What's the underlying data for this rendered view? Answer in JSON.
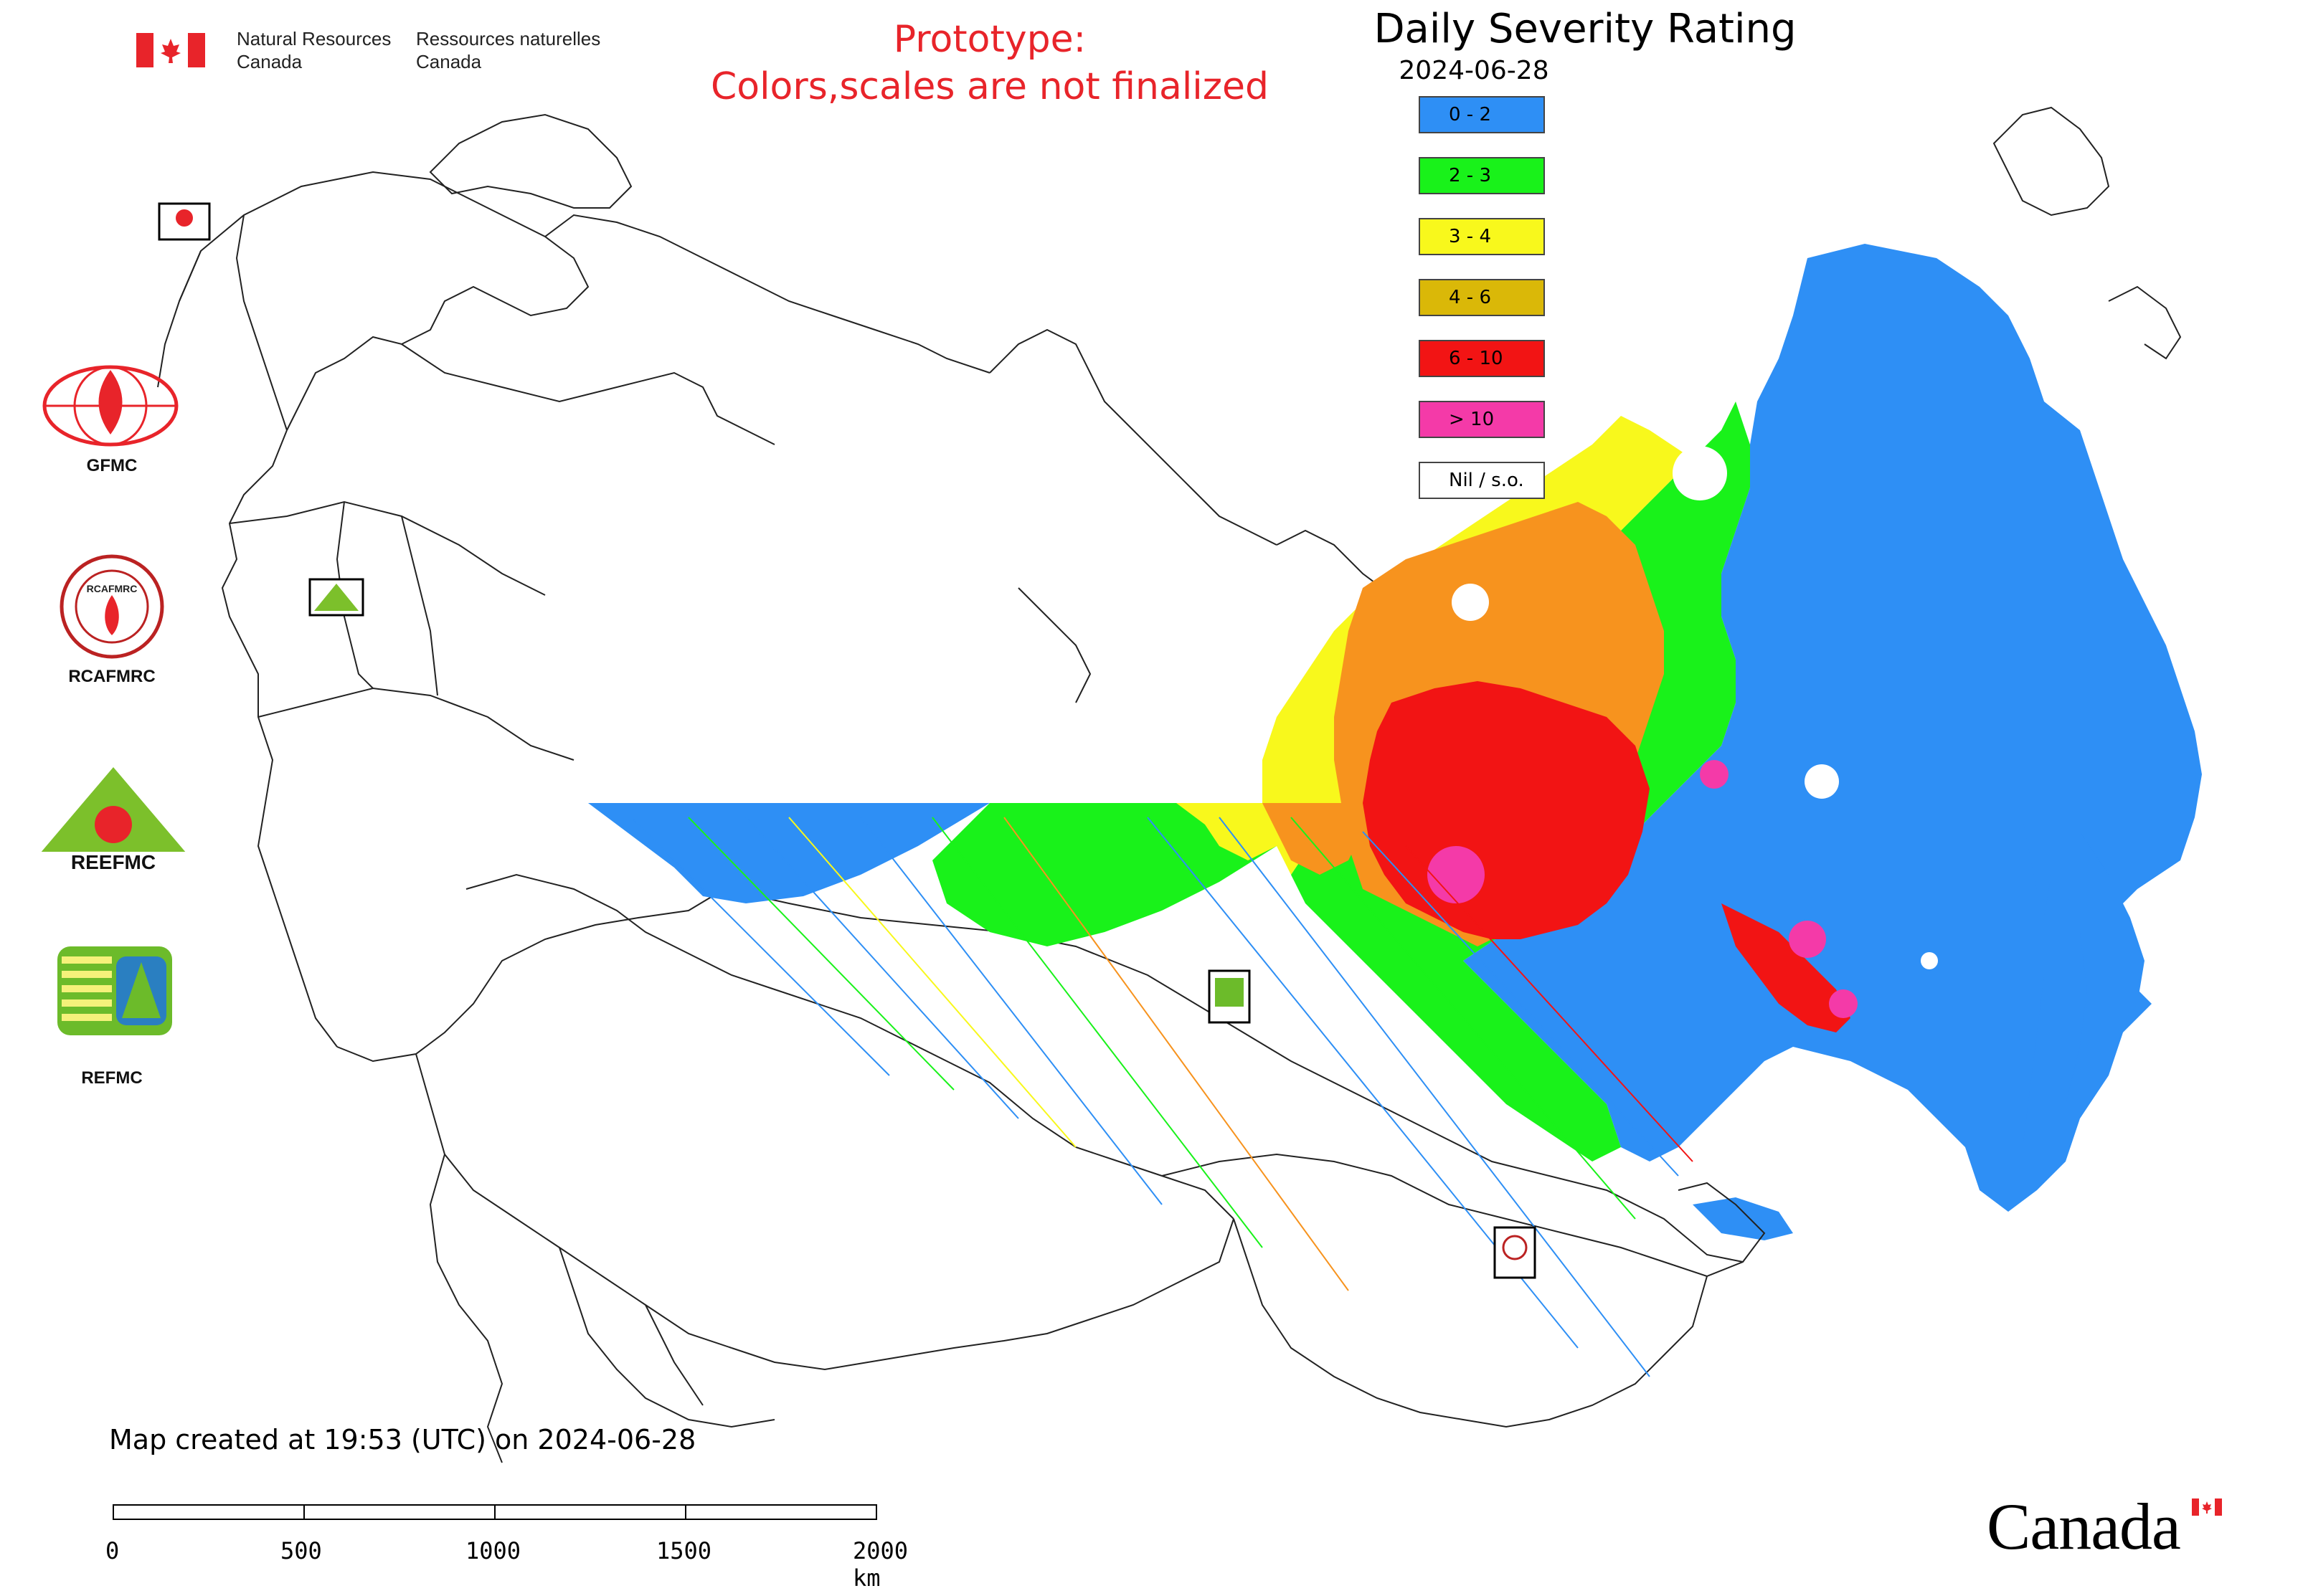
{
  "header": {
    "dept_en_line1": "Natural Resources",
    "dept_en_line2": "Canada",
    "dept_fr_line1": "Ressources naturelles",
    "dept_fr_line2": "Canada"
  },
  "notice": {
    "line1": "Prototype:",
    "line2": "Colors,scales are not finalized",
    "color": "#e8242a"
  },
  "map": {
    "title": "Daily Severity Rating",
    "date": "2024-06-28",
    "legend": [
      {
        "label": "0 - 2",
        "color": "#2e8ff5"
      },
      {
        "label": "2 - 3",
        "color": "#19f21a"
      },
      {
        "label": "3 - 4",
        "color": "#f8f81c"
      },
      {
        "label": "4 - 6",
        "color": "#dab808"
      },
      {
        "label": "6 - 10",
        "color": "#f21414"
      },
      {
        "label": "> 10",
        "color": "#f43aa8"
      },
      {
        "label": "Nil / s.o.",
        "color": "#ffffff"
      }
    ]
  },
  "agencies": [
    {
      "name": "GFMC",
      "logo": "gfmc-logo-icon"
    },
    {
      "name": "RCAFMRC",
      "logo": "rcafmrc-logo-icon"
    },
    {
      "name": "REEFMC",
      "logo": "reefmc-logo-icon"
    },
    {
      "name": "REFMC",
      "logo": "refmc-logo-icon"
    }
  ],
  "footer": {
    "created": "Map created at 19:53 (UTC) on 2024-06-28",
    "scale_ticks": [
      "0",
      "500",
      "1000",
      "1500",
      "2000 km"
    ],
    "wordmark": "Canada"
  }
}
